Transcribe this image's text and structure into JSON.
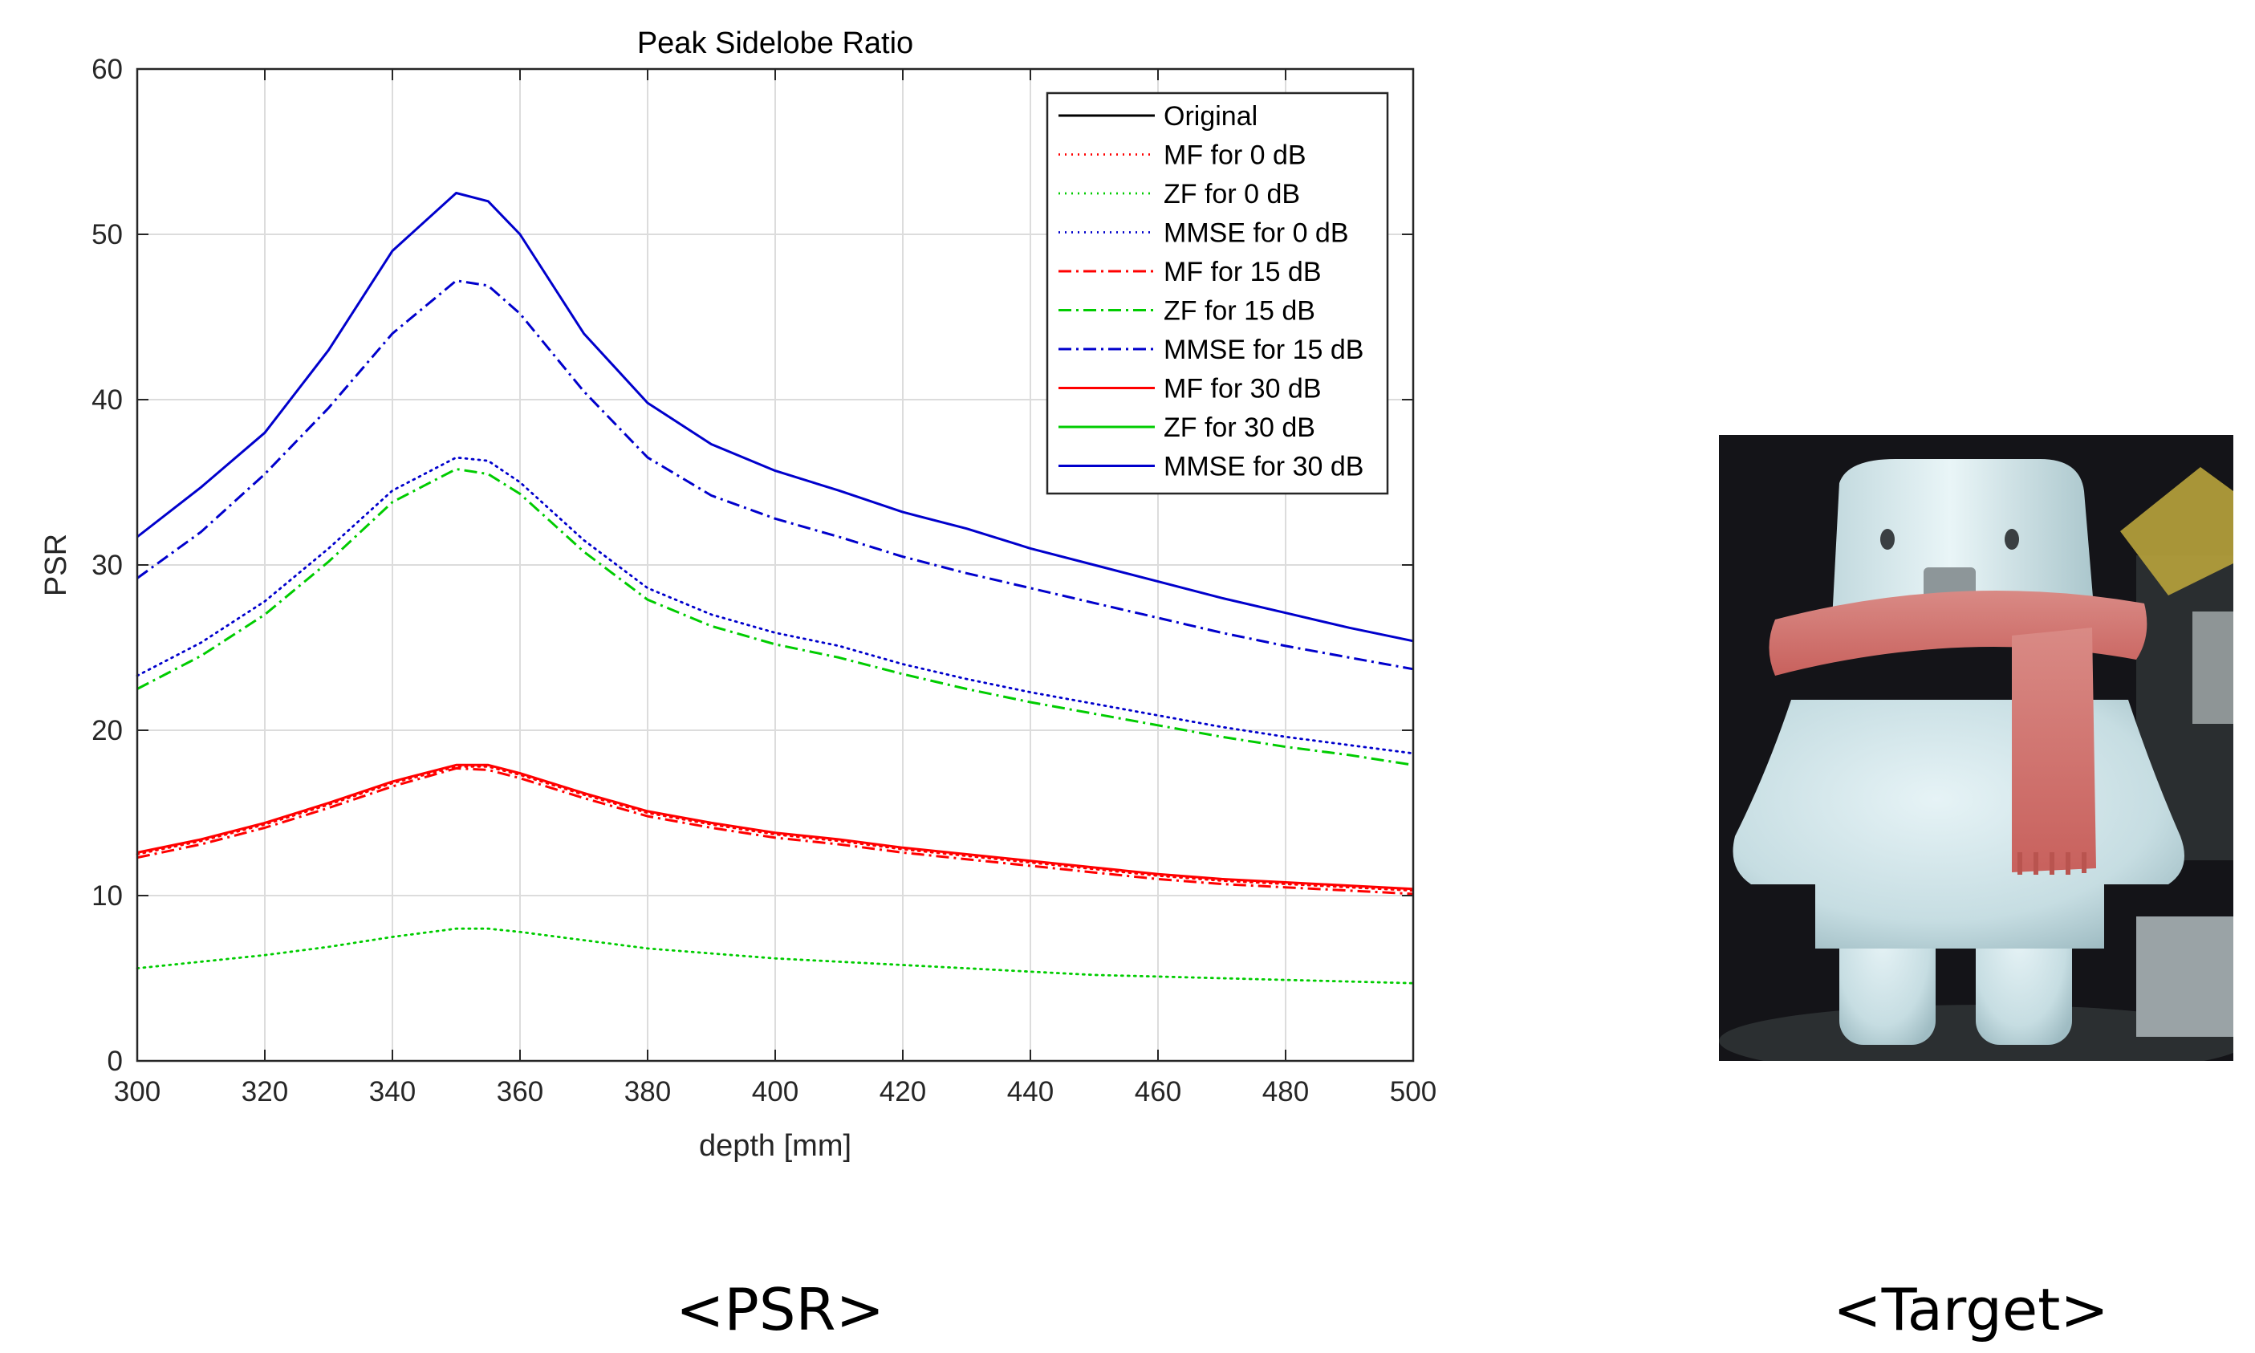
{
  "chart_data": {
    "type": "line",
    "title": "Peak Sidelobe Ratio",
    "xlabel": "depth [mm]",
    "ylabel": "PSR",
    "xlim": [
      300,
      500
    ],
    "ylim": [
      0,
      60
    ],
    "xticks": [
      300,
      320,
      340,
      360,
      380,
      400,
      420,
      440,
      460,
      480,
      500
    ],
    "yticks": [
      0,
      10,
      20,
      30,
      40,
      50,
      60
    ],
    "grid": true,
    "legend_position": "top-right",
    "x": [
      300,
      310,
      320,
      330,
      340,
      350,
      355,
      360,
      370,
      380,
      390,
      400,
      410,
      420,
      430,
      440,
      450,
      460,
      470,
      480,
      490,
      500
    ],
    "series": [
      {
        "name": "Original",
        "color": "#000000",
        "style": "solid",
        "visible": false,
        "values": [
          12.6,
          13.4,
          14.4,
          15.6,
          16.9,
          17.9,
          17.9,
          17.4,
          16.2,
          15.1,
          14.4,
          13.8,
          13.4,
          12.9,
          12.5,
          12.1,
          11.7,
          11.3,
          11.0,
          10.8,
          10.6,
          10.4
        ]
      },
      {
        "name": "MF for 0 dB",
        "color": "#ff0000",
        "style": "dotted",
        "values": [
          12.5,
          13.3,
          14.3,
          15.5,
          16.8,
          17.8,
          17.8,
          17.3,
          16.1,
          15.0,
          14.3,
          13.7,
          13.3,
          12.8,
          12.4,
          12.0,
          11.6,
          11.2,
          10.9,
          10.7,
          10.5,
          10.3
        ]
      },
      {
        "name": "ZF for 0 dB",
        "color": "#00cc00",
        "style": "dotted",
        "values": [
          5.6,
          6.0,
          6.4,
          6.9,
          7.5,
          8.0,
          8.0,
          7.8,
          7.3,
          6.8,
          6.5,
          6.2,
          6.0,
          5.8,
          5.6,
          5.4,
          5.2,
          5.1,
          5.0,
          4.9,
          4.8,
          4.7
        ]
      },
      {
        "name": "MMSE for 0 dB",
        "color": "#0000cc",
        "style": "dotted",
        "values": [
          23.3,
          25.3,
          27.8,
          31.0,
          34.5,
          36.5,
          36.3,
          35.0,
          31.5,
          28.6,
          27.0,
          25.9,
          25.1,
          24.0,
          23.1,
          22.3,
          21.6,
          20.9,
          20.2,
          19.6,
          19.1,
          18.6
        ]
      },
      {
        "name": "MF for 15 dB",
        "color": "#ff0000",
        "style": "dashdot",
        "values": [
          12.3,
          13.1,
          14.1,
          15.3,
          16.6,
          17.7,
          17.6,
          17.1,
          15.9,
          14.8,
          14.1,
          13.5,
          13.1,
          12.6,
          12.2,
          11.8,
          11.4,
          11.0,
          10.7,
          10.5,
          10.3,
          10.1
        ]
      },
      {
        "name": "ZF for 15 dB",
        "color": "#00cc00",
        "style": "dashdot",
        "values": [
          22.5,
          24.5,
          27.0,
          30.2,
          33.8,
          35.8,
          35.5,
          34.3,
          30.8,
          27.9,
          26.3,
          25.2,
          24.4,
          23.4,
          22.5,
          21.7,
          21.0,
          20.3,
          19.6,
          19.0,
          18.5,
          17.9
        ]
      },
      {
        "name": "MMSE for 15 dB",
        "color": "#0000cc",
        "style": "dashdot",
        "values": [
          29.2,
          32.0,
          35.5,
          39.5,
          44.0,
          47.2,
          46.9,
          45.2,
          40.5,
          36.5,
          34.2,
          32.8,
          31.7,
          30.5,
          29.5,
          28.6,
          27.7,
          26.8,
          25.9,
          25.1,
          24.4,
          23.7
        ]
      },
      {
        "name": "MF for 30 dB",
        "color": "#ff0000",
        "style": "solid",
        "values": [
          12.6,
          13.4,
          14.4,
          15.6,
          16.9,
          17.9,
          17.9,
          17.4,
          16.2,
          15.1,
          14.4,
          13.8,
          13.4,
          12.9,
          12.5,
          12.1,
          11.7,
          11.3,
          11.0,
          10.8,
          10.6,
          10.4
        ]
      },
      {
        "name": "ZF for 30 dB",
        "color": "#00cc00",
        "style": "solid",
        "visible": false,
        "values": [
          12.6,
          13.4,
          14.4,
          15.6,
          16.9,
          17.9,
          17.9,
          17.4,
          16.2,
          15.1,
          14.4,
          13.8,
          13.4,
          12.9,
          12.5,
          12.1,
          11.7,
          11.3,
          11.0,
          10.8,
          10.6,
          10.4
        ]
      },
      {
        "name": "MMSE for 30 dB",
        "color": "#0000cc",
        "style": "solid",
        "values": [
          31.7,
          34.7,
          38.0,
          43.0,
          49.0,
          52.5,
          52.0,
          50.0,
          44.0,
          39.8,
          37.3,
          35.7,
          34.5,
          33.2,
          32.2,
          31.0,
          30.0,
          29.0,
          28.0,
          27.1,
          26.2,
          25.4
        ]
      }
    ]
  },
  "captions": {
    "left": "<PSR>",
    "right": "<Target>"
  },
  "photo": {
    "subject": "white-toy-figure-with-red-scarf"
  }
}
